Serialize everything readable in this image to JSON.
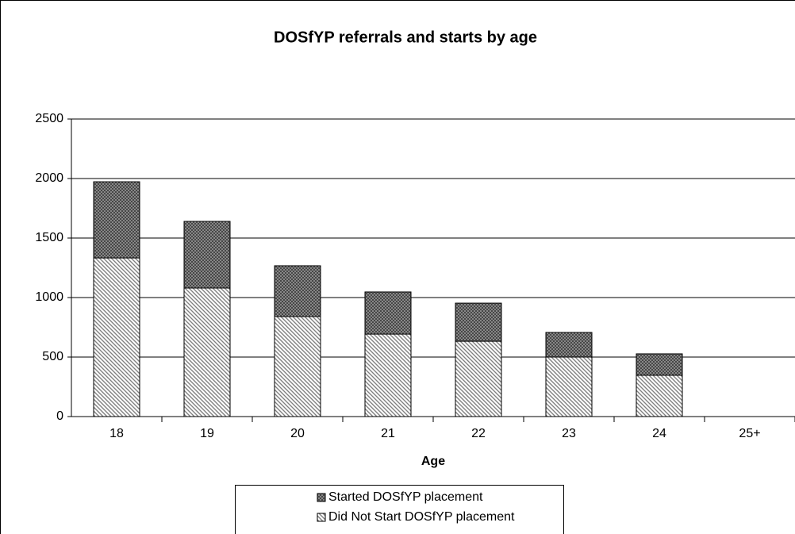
{
  "chart_data": {
    "type": "stacked_bar",
    "title": "DOSfYP referrals and starts by age",
    "x_label": "Age",
    "categories": [
      "18",
      "19",
      "20",
      "21",
      "22",
      "23",
      "24",
      "25+"
    ],
    "series": [
      {
        "name": "Did Not Start DOSfYP placement",
        "color": "#808080",
        "values": [
          1333,
          1080,
          840,
          693,
          633,
          500,
          347,
          null
        ]
      },
      {
        "name": "Started DOSfYP placement",
        "color": "#404040",
        "values": [
          640,
          560,
          427,
          354,
          320,
          207,
          180,
          null
        ]
      }
    ],
    "ylim": [
      0,
      2500
    ],
    "yticks": [
      0,
      500,
      1000,
      1500,
      2000,
      2500
    ],
    "grid": true
  }
}
